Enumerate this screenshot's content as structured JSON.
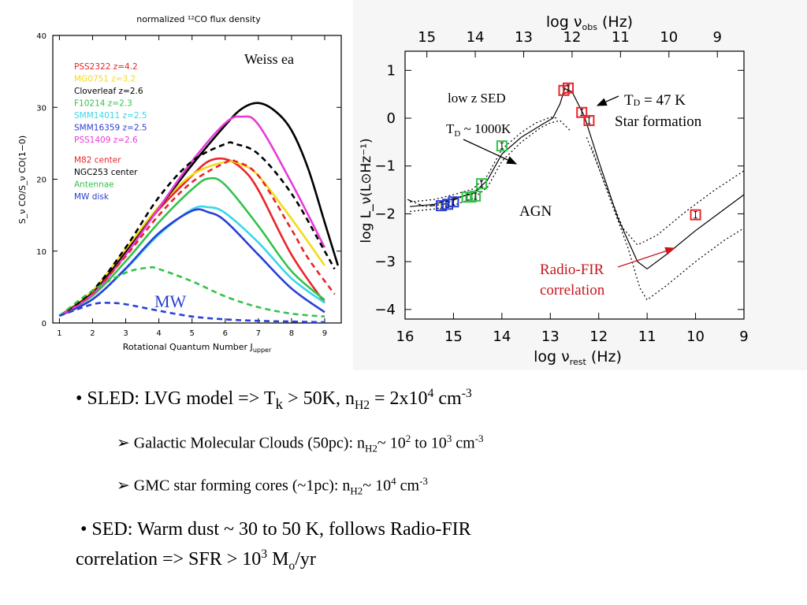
{
  "left_chart": {
    "title": "normalized ¹²CO flux density",
    "xlabel": "Rotational Quantum Number J",
    "xlabel_sub": "upper",
    "ylabel": "S_ν CO/S_ν CO(1−0)",
    "annotation_weiss": "Weiss ea",
    "annotation_mw": "MW",
    "legend": [
      {
        "label": "PSS2322  z=4.2",
        "color": "#e8262b"
      },
      {
        "label": "MG0751  z=3.2",
        "color": "#f2dc1a"
      },
      {
        "label": "Cloverleaf  z=2.6",
        "color": "#000000"
      },
      {
        "label": "F10214  z=2.3",
        "color": "#33c24a"
      },
      {
        "label": "SMM14011  z=2.5",
        "color": "#38d8e8"
      },
      {
        "label": "SMM16359  z=2.5",
        "color": "#2a3fd6"
      },
      {
        "label": "PSS1409  z=2.6",
        "color": "#e83ad8"
      },
      {
        "label": "M82 center",
        "color": "#e8262b"
      },
      {
        "label": "NGC253 center",
        "color": "#000000"
      },
      {
        "label": "Antennae",
        "color": "#33c24a"
      },
      {
        "label": "MW disk",
        "color": "#2a3fd6"
      }
    ]
  },
  "chart_data": [
    {
      "type": "line",
      "title": "normalized ¹²CO flux density",
      "xlabel": "Rotational Quantum Number J_upper",
      "ylabel": "S_ν CO/S_ν CO(1−0)",
      "xlim": [
        0.8,
        9.5
      ],
      "ylim": [
        0,
        40
      ],
      "xticks": [
        1,
        2,
        3,
        4,
        5,
        6,
        7,
        8,
        9
      ],
      "yticks": [
        0,
        10,
        20,
        30,
        40
      ],
      "series": [
        {
          "name": "PSS2322  z=4.2",
          "color": "#e8262b",
          "dash": false,
          "x": [
            1,
            2,
            3,
            4,
            5,
            5.5,
            6,
            6.5,
            7,
            8,
            9
          ],
          "y": [
            1,
            4.4,
            10,
            15.8,
            20.5,
            22.5,
            22.8,
            21.5,
            18.5,
            9.5,
            2.8
          ]
        },
        {
          "name": "MG0751  z=3.2",
          "color": "#f2dc1a",
          "dash": false,
          "x": [
            1,
            2,
            3,
            4,
            5,
            6,
            6.5,
            7,
            8,
            9
          ],
          "y": [
            1,
            4.5,
            10.3,
            16.2,
            20.6,
            22.4,
            22,
            20.5,
            14.5,
            8
          ]
        },
        {
          "name": "Cloverleaf  z=2.6",
          "color": "#000000",
          "dash": false,
          "x": [
            1,
            2,
            3,
            4,
            5,
            6,
            6.5,
            7,
            7.5,
            8,
            8.5,
            9,
            9.4
          ],
          "y": [
            1,
            4.2,
            9.8,
            16,
            22,
            27.5,
            29.8,
            30.6,
            29.5,
            26.8,
            21.5,
            14,
            8
          ]
        },
        {
          "name": "F10214  z=2.3",
          "color": "#33c24a",
          "dash": false,
          "x": [
            1,
            2,
            3,
            4,
            5,
            5.5,
            6,
            7,
            8,
            9
          ],
          "y": [
            1,
            3.8,
            8.6,
            14,
            18.6,
            20.1,
            19.2,
            13.5,
            7.2,
            3.2
          ]
        },
        {
          "name": "SMM14011  z=2.5",
          "color": "#38d8e8",
          "dash": false,
          "x": [
            1,
            2,
            3,
            4,
            5,
            5.5,
            6,
            7,
            8,
            9
          ],
          "y": [
            1,
            3.3,
            7.5,
            12.3,
            15.8,
            16.1,
            15.3,
            11.2,
            6.2,
            2.8
          ]
        },
        {
          "name": "SMM16359  z=2.5",
          "color": "#2a3fd6",
          "dash": false,
          "x": [
            1,
            2,
            3,
            4,
            5,
            5.5,
            6,
            7,
            8,
            9
          ],
          "y": [
            1,
            3.3,
            7.6,
            12.5,
            15.6,
            15.4,
            14.2,
            9.5,
            4.8,
            1.5
          ]
        },
        {
          "name": "PSS1409  z=2.6",
          "color": "#e83ad8",
          "dash": false,
          "x": [
            1,
            2,
            3,
            4,
            5,
            6,
            6.5,
            7,
            8,
            9
          ],
          "y": [
            1,
            4,
            9.5,
            16,
            22.5,
            27.8,
            28.7,
            27.6,
            19.5,
            10.5
          ]
        },
        {
          "name": "M82 center",
          "color": "#e8262b",
          "dash": true,
          "x": [
            1,
            2,
            3,
            4,
            5,
            6,
            6.3,
            7,
            8,
            8.5,
            9.3
          ],
          "y": [
            1,
            4.2,
            9.3,
            15,
            19.6,
            22.3,
            22.5,
            20.5,
            13,
            9,
            4
          ]
        },
        {
          "name": "NGC253 center",
          "color": "#000000",
          "dash": true,
          "x": [
            1,
            2,
            3,
            4,
            5,
            6,
            6.3,
            7,
            8,
            9,
            9.3
          ],
          "y": [
            1,
            4.5,
            10.5,
            17.5,
            22.5,
            24.9,
            24.9,
            23.5,
            18,
            10,
            7.5
          ]
        },
        {
          "name": "Antennae",
          "color": "#33c24a",
          "dash": true,
          "x": [
            1,
            2,
            3,
            3.7,
            4,
            5,
            6,
            7,
            8,
            9
          ],
          "y": [
            1,
            4.5,
            7,
            7.7,
            7.5,
            5.8,
            3.7,
            2.2,
            1.3,
            0.9
          ]
        },
        {
          "name": "MW disk",
          "color": "#2a3fd6",
          "dash": true,
          "x": [
            1,
            2,
            2.5,
            3,
            4,
            5,
            6,
            7,
            8,
            9
          ],
          "y": [
            1,
            2.6,
            2.8,
            2.6,
            1.7,
            0.9,
            0.5,
            0.3,
            0.2,
            0.1
          ]
        }
      ]
    },
    {
      "type": "scatter",
      "xlabel": "log ν_rest (Hz)",
      "x2label": "log ν_obs (Hz)",
      "ylabel": "log L_ν(L⊙Hz⁻¹)",
      "xlim": [
        16,
        9
      ],
      "ylim": [
        -4.2,
        1.4
      ],
      "xticks": [
        16,
        15,
        14,
        13,
        12,
        11,
        10,
        9
      ],
      "x2ticks": [
        15,
        14,
        13,
        12,
        11,
        10,
        9
      ],
      "yticks": [
        1,
        0,
        -1,
        -2,
        -3,
        -4
      ],
      "points": [
        {
          "x": 15.25,
          "y": -1.83,
          "color": "#2a3fd6"
        },
        {
          "x": 15.12,
          "y": -1.8,
          "color": "#2a3fd6"
        },
        {
          "x": 15.0,
          "y": -1.75,
          "color": "#2a3fd6"
        },
        {
          "x": 14.72,
          "y": -1.65,
          "color": "#33c24a"
        },
        {
          "x": 14.64,
          "y": -1.65,
          "color": "#33c24a"
        },
        {
          "x": 14.55,
          "y": -1.63,
          "color": "#33c24a"
        },
        {
          "x": 14.42,
          "y": -1.37,
          "color": "#33c24a"
        },
        {
          "x": 14.0,
          "y": -0.58,
          "color": "#33c24a"
        },
        {
          "x": 12.72,
          "y": 0.58,
          "color": "#e8262b"
        },
        {
          "x": 12.63,
          "y": 0.63,
          "color": "#e8262b"
        },
        {
          "x": 12.35,
          "y": 0.12,
          "color": "#e8262b"
        },
        {
          "x": 12.2,
          "y": -0.05,
          "color": "#e8262b"
        },
        {
          "x": 10.0,
          "y": -2.02,
          "color": "#e8262b"
        }
      ],
      "annotations": {
        "low_z_sed": "low z SED",
        "td_1000": "T",
        "td_1000_sub": "D",
        "td_1000_rest": " ~ 1000K",
        "td_47": "T",
        "td_47_sub": "D",
        "td_47_rest": " = 47  K",
        "star_formation": "Star formation",
        "agn": "AGN",
        "radio_fir_1": "Radio-FIR",
        "radio_fir_2": "correlation"
      }
    }
  ],
  "bullets": {
    "b1": {
      "pre": "• SLED: LVG model => T",
      "sub": "k",
      "mid": " > 50K,  n",
      "sub2": "H2",
      "mid2": " = 2x10",
      "sup": "4",
      "post": " cm",
      "sup2": "-3"
    },
    "b1a": {
      "pre": "➢ Galactic Molecular Clouds (50pc): n",
      "sub": "H2",
      "mid": "~ 10",
      "sup": "2",
      "mid2": " to 10",
      "sup2": "3",
      "post": " cm",
      "sup3": "-3"
    },
    "b1b": {
      "pre": "➢ GMC star forming cores (~1pc): n",
      "sub": "H2",
      "mid": "~ 10",
      "sup": "4",
      "post": " cm",
      "sup2": "-3"
    },
    "b2": {
      "line1": "• SED: Warm dust ~ 30 to 50 K, follows Radio-FIR",
      "pre": "correlation => SFR > 10",
      "sup": "3",
      "mid": " M",
      "sub": "o",
      "post": "/yr"
    }
  }
}
